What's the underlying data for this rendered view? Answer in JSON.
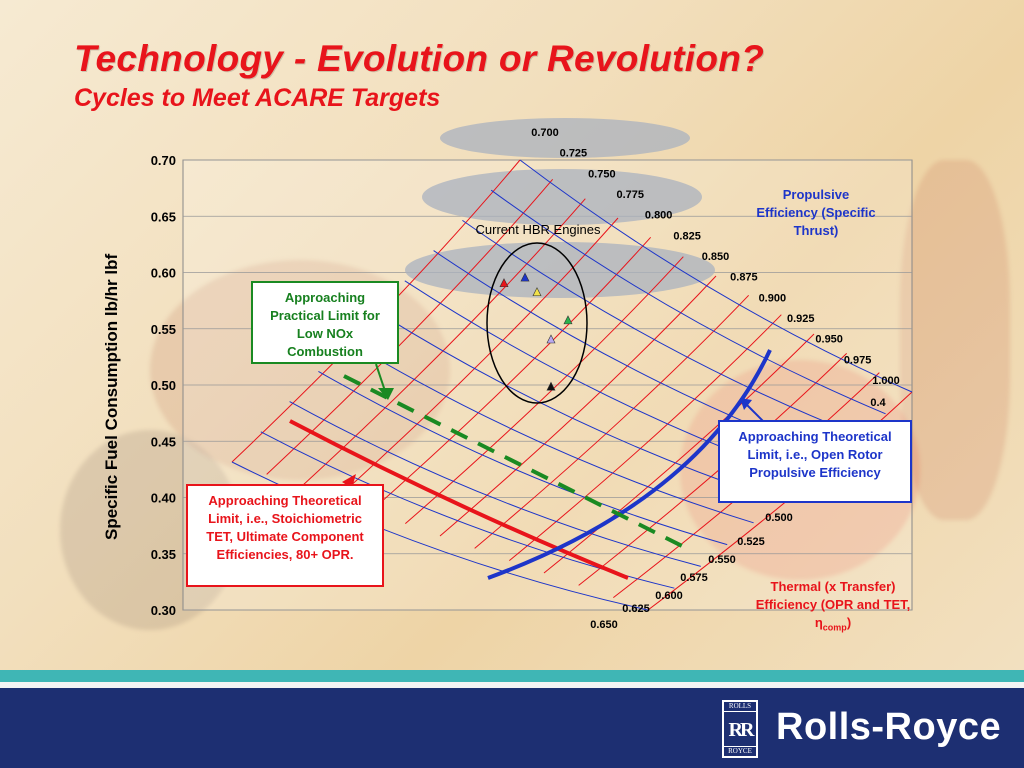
{
  "slide": {
    "title": "Technology - Evolution or Revolution?",
    "subtitle": "Cycles to Meet ACARE Targets"
  },
  "annotations": {
    "nox_box": "Approaching Practical Limit for Low NOx Combustion",
    "thermal_limit_box": "Approaching Theoretical Limit, i.e., Stoichiometric TET, Ultimate Component Efficiencies, 80+ OPR.",
    "propulsive_limit_box": "Approaching Theoretical Limit, i.e., Open Rotor Propulsive Efficiency",
    "propulsive_note": "Propulsive Efficiency (Specific Thrust)",
    "thermal_note_prefix": "Thermal (x Transfer) Efficiency (OPR and TET, ",
    "thermal_note_symbol": "η",
    "thermal_note_sub": "comp",
    "thermal_note_suffix": ")",
    "engines_label": "Current HBR Engines"
  },
  "footer": {
    "logo_top": "ROLLS",
    "logo_mark": "RR",
    "logo_bottom": "ROYCE",
    "company": "Rolls-Royce"
  },
  "colors": {
    "title": "#e8141b",
    "grid_red": "#e8141b",
    "grid_blue": "#1d35c9",
    "nox_green": "#1a8a22",
    "footer": "#1d2f72",
    "teal": "#3fb6b5"
  },
  "chart_data": {
    "type": "scatter",
    "ylabel": "Specific Fuel Consumption lb/hr lbf",
    "ylim": [
      0.3,
      0.7
    ],
    "yticks": [
      "0.70",
      "0.65",
      "0.60",
      "0.55",
      "0.50",
      "0.45",
      "0.40",
      "0.35",
      "0.30"
    ],
    "grid": true,
    "propulsive_efficiency_labels": [
      "0.700",
      "0.725",
      "0.750",
      "0.775",
      "0.800",
      "0.825",
      "0.850",
      "0.875",
      "0.900",
      "0.925",
      "0.950",
      "0.975",
      "1.000"
    ],
    "thermal_efficiency_labels": [
      "0.4",
      "0.500",
      "0.525",
      "0.550",
      "0.575",
      "0.600",
      "0.625",
      "0.650"
    ],
    "engine_markers": [
      {
        "color": "#e8141b",
        "sfc": 0.59
      },
      {
        "color": "#1d35c9",
        "sfc": 0.595
      },
      {
        "color": "#f2e24a",
        "sfc": 0.582
      },
      {
        "color": "#2bb24c",
        "sfc": 0.557
      },
      {
        "color": "#b9a9ef",
        "sfc": 0.54
      },
      {
        "color": "#111111",
        "sfc": 0.498
      }
    ]
  }
}
